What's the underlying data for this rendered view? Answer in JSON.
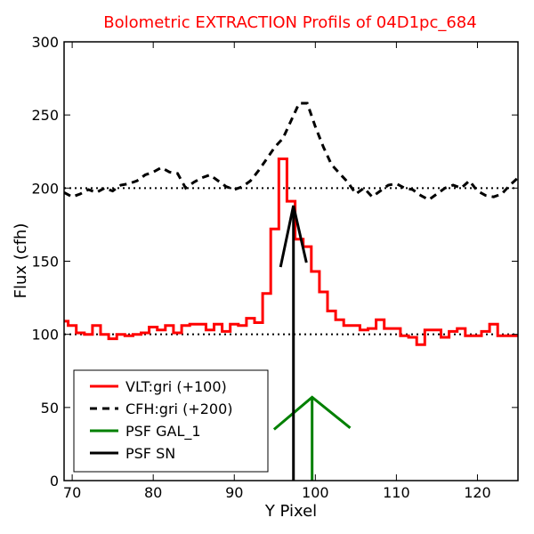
{
  "chart_data": {
    "type": "line",
    "title": "Bolometric EXTRACTION Profils of 04D1pc_684",
    "title_color": "#ff0000",
    "xlabel": "Y Pixel",
    "ylabel": "Flux (cfh)",
    "xlim": [
      69,
      125
    ],
    "ylim": [
      0,
      300
    ],
    "xticks": [
      70,
      80,
      90,
      100,
      110,
      120
    ],
    "yticks": [
      0,
      50,
      100,
      150,
      200,
      250,
      300
    ],
    "reference_lines": [
      100,
      200
    ],
    "legend_placement": "lower-left",
    "series": [
      {
        "name": "VLT:gri (+100)",
        "color": "#ff0000",
        "style": "steps",
        "x": [
          69,
          70,
          71,
          72,
          73,
          74,
          75,
          76,
          77,
          78,
          79,
          80,
          81,
          82,
          83,
          84,
          85,
          86,
          87,
          88,
          89,
          90,
          91,
          92,
          93,
          94,
          95,
          96,
          97,
          98,
          99,
          100,
          101,
          102,
          103,
          104,
          105,
          106,
          107,
          108,
          109,
          110,
          111,
          112,
          113,
          114,
          115,
          116,
          117,
          118,
          119,
          120,
          121,
          122,
          123,
          124,
          125
        ],
        "values": [
          109,
          106,
          101,
          100,
          106,
          100,
          97,
          100,
          99,
          100,
          101,
          105,
          103,
          106,
          101,
          106,
          107,
          107,
          103,
          107,
          102,
          107,
          106,
          111,
          108,
          128,
          172,
          220,
          191,
          165,
          160,
          143,
          129,
          116,
          110,
          106,
          106,
          103,
          104,
          110,
          104,
          104,
          99,
          98,
          93,
          103,
          103,
          98,
          102,
          104,
          99,
          99,
          102,
          107,
          99,
          99,
          99
        ]
      },
      {
        "name": "CFH:gri (+200)",
        "color": "#000000",
        "style": "dashed",
        "x": [
          69,
          70,
          71,
          72,
          73,
          74,
          75,
          76,
          77,
          78,
          79,
          80,
          81,
          82,
          83,
          84,
          85,
          86,
          87,
          88,
          89,
          90,
          91,
          92,
          93,
          94,
          95,
          96,
          97,
          98,
          99,
          100,
          101,
          102,
          103,
          104,
          105,
          106,
          107,
          108,
          109,
          110,
          111,
          112,
          113,
          114,
          115,
          116,
          117,
          118,
          119,
          120,
          121,
          122,
          123,
          124,
          125
        ],
        "values": [
          197,
          194,
          196,
          199,
          197,
          200,
          198,
          202,
          203,
          205,
          209,
          211,
          214,
          211,
          210,
          200,
          204,
          207,
          209,
          205,
          201,
          199,
          201,
          205,
          212,
          220,
          228,
          234,
          246,
          258,
          258,
          242,
          228,
          216,
          210,
          204,
          196,
          200,
          194,
          198,
          202,
          203,
          200,
          199,
          195,
          192,
          196,
          200,
          202,
          200,
          205,
          198,
          195,
          194,
          196,
          202,
          207
        ]
      },
      {
        "name": "PSF GAL_1",
        "color": "#008000",
        "style": "solid",
        "x": [
          94.9,
          99.6,
          104.3
        ],
        "values": [
          35,
          57,
          36
        ]
      },
      {
        "name": "PSF SN",
        "color": "#000000",
        "style": "solid",
        "x": [
          95.7,
          97.3,
          98.9
        ],
        "values": [
          146,
          188,
          149
        ]
      }
    ],
    "markers": [
      {
        "series": "PSF GAL_1",
        "x": 99.6,
        "top": 57,
        "color": "#008000"
      },
      {
        "series": "PSF SN",
        "x": 97.3,
        "top": 188,
        "color": "#000000"
      }
    ]
  }
}
